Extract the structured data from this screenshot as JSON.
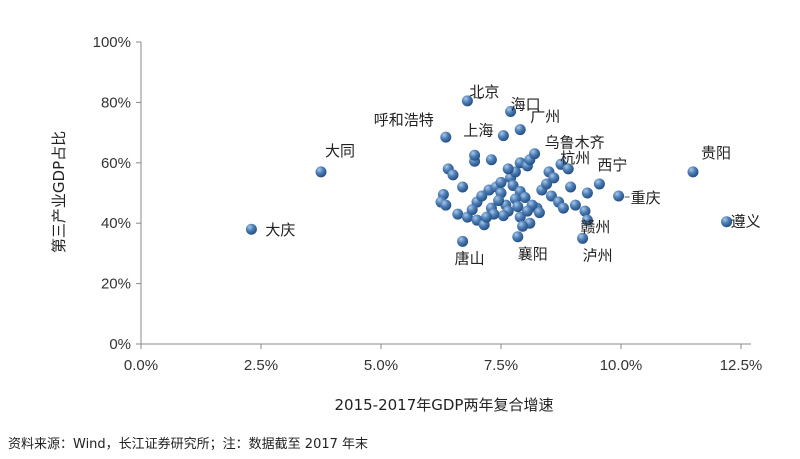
{
  "chart_data": {
    "type": "scatter",
    "title": "",
    "xlabel": "2015-2017年GDP两年复合增速",
    "ylabel": "第三产业GDP占比",
    "xlim": [
      0,
      12.5
    ],
    "ylim": [
      0,
      100
    ],
    "x_ticks": [
      "0.0%",
      "2.5%",
      "5.0%",
      "7.5%",
      "10.0%",
      "12.5%"
    ],
    "y_ticks": [
      "0%",
      "20%",
      "40%",
      "60%",
      "80%",
      "100%"
    ],
    "labeled_points": [
      {
        "name": "大庆",
        "x": 2.3,
        "y": 38
      },
      {
        "name": "大同",
        "x": 3.75,
        "y": 57
      },
      {
        "name": "北京",
        "x": 6.8,
        "y": 80.5
      },
      {
        "name": "海口",
        "x": 7.7,
        "y": 77
      },
      {
        "name": "广州",
        "x": 7.9,
        "y": 71
      },
      {
        "name": "上海",
        "x": 7.55,
        "y": 69
      },
      {
        "name": "呼和浩特",
        "x": 6.35,
        "y": 68.5
      },
      {
        "name": "乌鲁木齐",
        "x": 8.2,
        "y": 63
      },
      {
        "name": "杭州",
        "x": 8.9,
        "y": 58
      },
      {
        "name": "西宁",
        "x": 9.55,
        "y": 53
      },
      {
        "name": "贵阳",
        "x": 11.5,
        "y": 57
      },
      {
        "name": "遵义",
        "x": 12.2,
        "y": 40.5
      },
      {
        "name": "重庆",
        "x": 9.95,
        "y": 49
      },
      {
        "name": "赣州",
        "x": 9.3,
        "y": 41
      },
      {
        "name": "泸州",
        "x": 9.2,
        "y": 35
      },
      {
        "name": "襄阳",
        "x": 7.85,
        "y": 35.5
      },
      {
        "name": "唐山",
        "x": 6.7,
        "y": 34
      }
    ],
    "points": [
      [
        6.4,
        58
      ],
      [
        6.5,
        56
      ],
      [
        6.95,
        60.5
      ],
      [
        7.3,
        61
      ],
      [
        6.3,
        49.5
      ],
      [
        6.25,
        47
      ],
      [
        6.35,
        46
      ],
      [
        6.6,
        43
      ],
      [
        6.8,
        42
      ],
      [
        7.0,
        41
      ],
      [
        7.15,
        39.5
      ],
      [
        6.7,
        52
      ],
      [
        7.0,
        47
      ],
      [
        7.25,
        51
      ],
      [
        7.4,
        52
      ],
      [
        7.5,
        50
      ],
      [
        7.3,
        45
      ],
      [
        7.6,
        46
      ],
      [
        7.7,
        55
      ],
      [
        7.8,
        57
      ],
      [
        7.9,
        60
      ],
      [
        8.05,
        59
      ],
      [
        8.1,
        61
      ],
      [
        7.75,
        52.5
      ],
      [
        7.9,
        50.5
      ],
      [
        8.0,
        48.5
      ],
      [
        7.8,
        48
      ],
      [
        7.65,
        44
      ],
      [
        7.9,
        42
      ],
      [
        8.1,
        40
      ],
      [
        8.25,
        45
      ],
      [
        8.35,
        51
      ],
      [
        8.55,
        49
      ],
      [
        8.7,
        47
      ],
      [
        8.8,
        45
      ],
      [
        8.5,
        57
      ],
      [
        8.95,
        52
      ],
      [
        9.05,
        46
      ],
      [
        9.25,
        44
      ],
      [
        7.55,
        42.5
      ],
      [
        7.35,
        43
      ],
      [
        7.95,
        39
      ],
      [
        8.45,
        53
      ],
      [
        7.1,
        49
      ],
      [
        7.45,
        47.5
      ],
      [
        7.85,
        45.5
      ],
      [
        8.15,
        46
      ],
      [
        7.2,
        42
      ],
      [
        6.9,
        44.5
      ],
      [
        8.6,
        55
      ],
      [
        7.65,
        58
      ],
      [
        8.3,
        43.5
      ],
      [
        9.3,
        50
      ],
      [
        7.5,
        53.5
      ],
      [
        8.05,
        44
      ],
      [
        6.95,
        62.5
      ],
      [
        8.75,
        59.5
      ]
    ]
  },
  "source_note": "资料来源：Wind，长江证券研究所；注：数据截至 2017 年末"
}
